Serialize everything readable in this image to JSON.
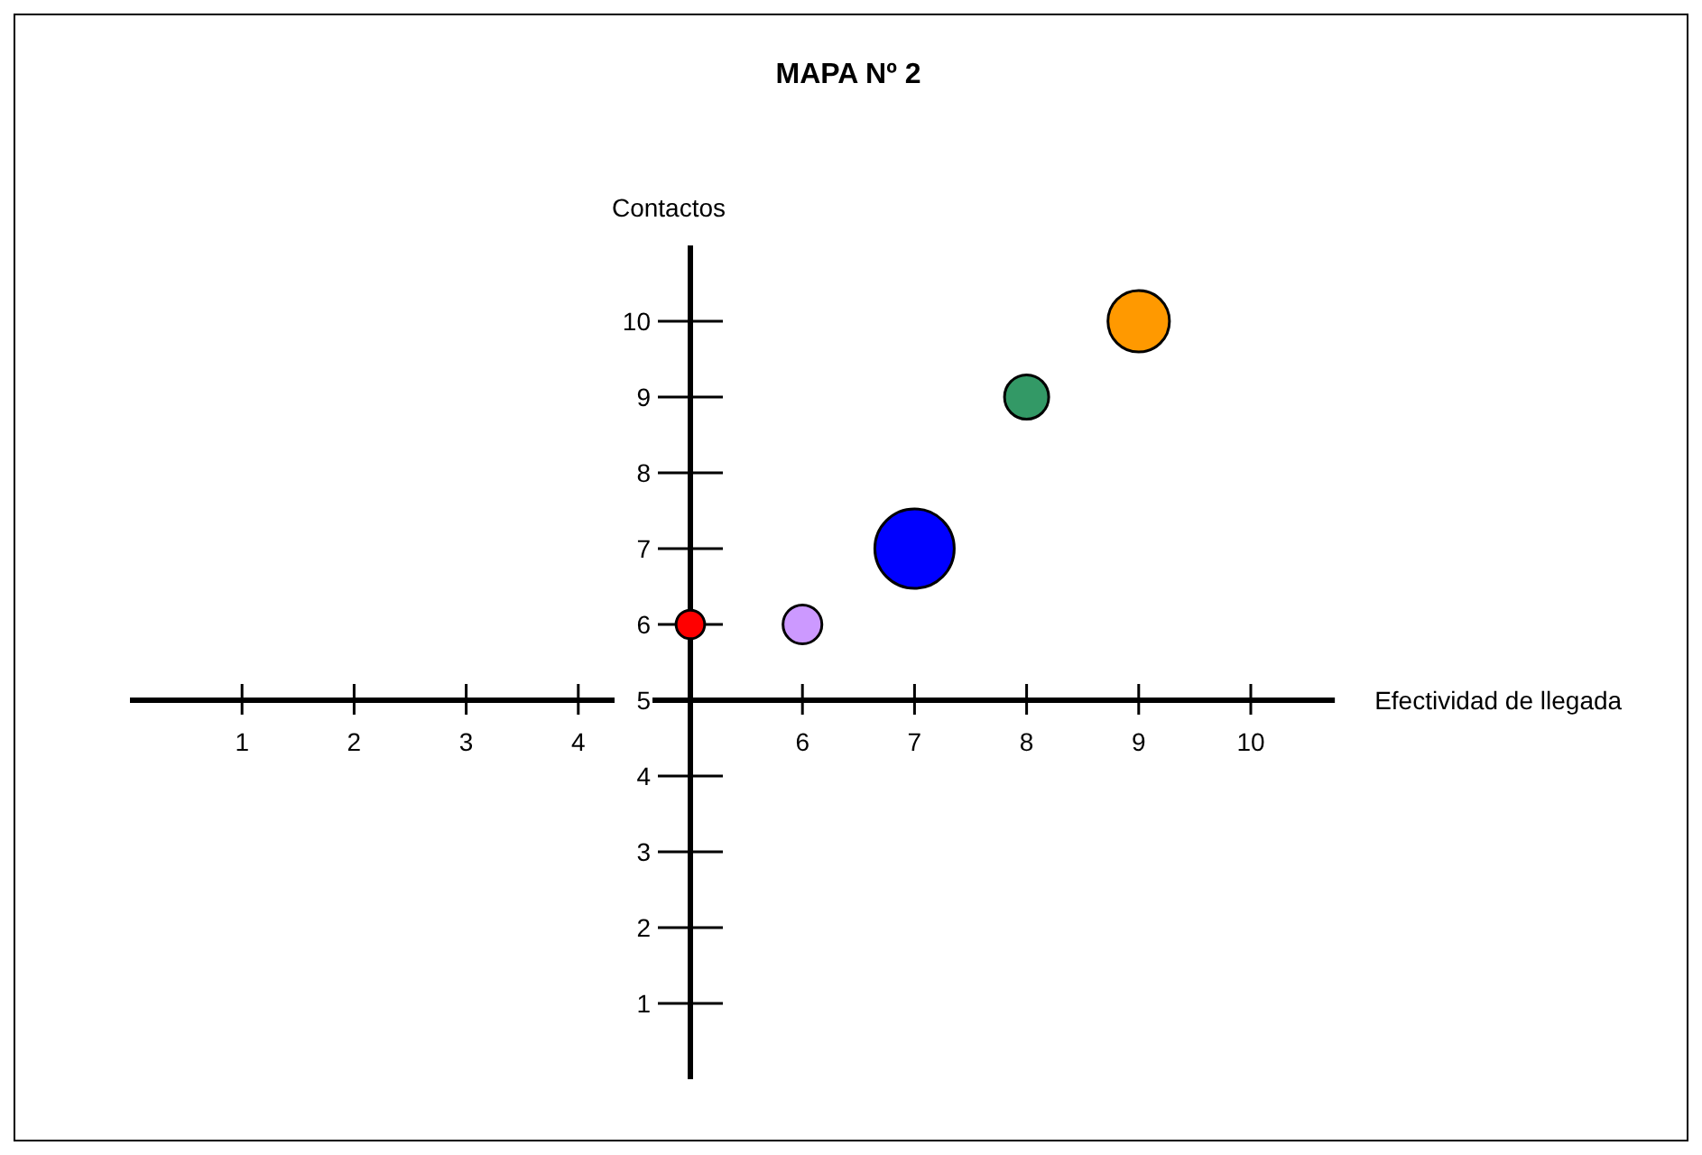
{
  "chart_data": {
    "type": "bubble",
    "title": "MAPA Nº 2",
    "xlabel": "Efectividad de llegada",
    "ylabel": "Contactos",
    "x": [
      5,
      6,
      7,
      8,
      9
    ],
    "values": [
      6,
      6,
      7,
      9,
      10
    ],
    "sizes": [
      0.13,
      0.24,
      1,
      0.31,
      0.6
    ],
    "colors": [
      "#ff0000",
      "#cc99ff",
      "#0000ff",
      "#339966",
      "#ff9900"
    ],
    "xlim": [
      0,
      10.75
    ],
    "ylim": [
      0,
      11
    ],
    "xticks": [
      1,
      2,
      3,
      4,
      {
        "value": 5,
        "label": null
      },
      6,
      7,
      8,
      9,
      10
    ],
    "yticks": [
      1,
      2,
      3,
      4,
      5,
      6,
      7,
      8,
      9,
      10
    ],
    "grid": false,
    "legend": false
  }
}
